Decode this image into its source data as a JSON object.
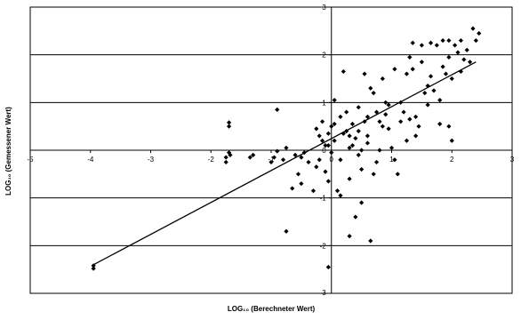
{
  "chart_data": {
    "type": "scatter",
    "title": "",
    "xlabel": "LOG₁₀ (Berechneter Wert)",
    "ylabel": "LOG₁₀ (Gemessener Wert)",
    "xlim": [
      -5,
      3
    ],
    "ylim": [
      -3,
      3
    ],
    "x_ticks": [
      -5,
      -4,
      -3,
      -2,
      -1,
      0,
      1,
      2,
      3
    ],
    "y_ticks": [
      -3,
      -2,
      -1,
      0,
      1,
      2,
      3
    ],
    "x_tick_labels": [
      "-5",
      "-4",
      "-3",
      "-2",
      "-1",
      "0",
      "1",
      "2",
      "3"
    ],
    "y_tick_labels": [
      "-3",
      "-2",
      "-1",
      "0",
      "1",
      "2",
      "3"
    ],
    "grid": "horizontal",
    "legend": "none",
    "marker": "diamond",
    "marker_color": "#000000",
    "trendline": {
      "x": [
        -3.95,
        2.4
      ],
      "y": [
        -2.4,
        1.85
      ]
    },
    "series": [
      {
        "values": [
          [
            -3.95,
            -2.42
          ],
          [
            -3.95,
            -2.48
          ],
          [
            -1.7,
            0.58
          ],
          [
            -1.7,
            0.5
          ],
          [
            -1.75,
            -0.15
          ],
          [
            -1.7,
            -0.05
          ],
          [
            -1.75,
            -0.25
          ],
          [
            -1.68,
            -0.1
          ],
          [
            -1.3,
            -0.1
          ],
          [
            -1.35,
            -0.15
          ],
          [
            -1.0,
            -0.25
          ],
          [
            -0.95,
            -0.15
          ],
          [
            -0.9,
            -0.02
          ],
          [
            -0.9,
            0.85
          ],
          [
            -0.8,
            -0.2
          ],
          [
            -0.75,
            0.05
          ],
          [
            -0.6,
            -0.1
          ],
          [
            -0.5,
            -0.15
          ],
          [
            -0.45,
            -0.05
          ],
          [
            -0.38,
            -0.25
          ],
          [
            -0.75,
            -1.7
          ],
          [
            -0.65,
            -0.8
          ],
          [
            -0.55,
            -0.5
          ],
          [
            -0.5,
            -0.7
          ],
          [
            -0.2,
            -0.2
          ],
          [
            -0.25,
            0.45
          ],
          [
            -0.15,
            0.2
          ],
          [
            -0.15,
            0.6
          ],
          [
            -0.1,
            -0.45
          ],
          [
            -0.05,
            -0.65
          ],
          [
            -0.1,
            0.1
          ],
          [
            -0.05,
            0.35
          ],
          [
            0.0,
            0.5
          ],
          [
            0.05,
            1.05
          ],
          [
            0.05,
            0.2
          ],
          [
            0.1,
            -0.85
          ],
          [
            0.15,
            -0.95
          ],
          [
            0.2,
            1.65
          ],
          [
            0.2,
            0.35
          ],
          [
            0.25,
            0.4
          ],
          [
            0.25,
            0.8
          ],
          [
            0.3,
            0.3
          ],
          [
            0.3,
            -0.6
          ],
          [
            0.35,
            0.1
          ],
          [
            0.35,
            0.55
          ],
          [
            0.4,
            0.25
          ],
          [
            0.45,
            0.4
          ],
          [
            0.45,
            -0.1
          ],
          [
            0.5,
            -0.4
          ],
          [
            0.5,
            0.0
          ],
          [
            0.5,
            -1.1
          ],
          [
            0.55,
            0.6
          ],
          [
            0.6,
            0.7
          ],
          [
            0.6,
            0.3
          ],
          [
            0.65,
            1.3
          ],
          [
            0.7,
            1.2
          ],
          [
            0.75,
            0.8
          ],
          [
            0.75,
            -0.25
          ],
          [
            0.8,
            0.6
          ],
          [
            0.85,
            0.5
          ],
          [
            0.85,
            1.5
          ],
          [
            0.9,
            1.0
          ],
          [
            0.95,
            0.45
          ],
          [
            1.0,
            0.05
          ],
          [
            1.05,
            -0.2
          ],
          [
            1.1,
            -0.5
          ],
          [
            1.15,
            0.6
          ],
          [
            1.2,
            0.8
          ],
          [
            1.25,
            1.6
          ],
          [
            1.25,
            0.2
          ],
          [
            1.3,
            1.95
          ],
          [
            1.35,
            1.7
          ],
          [
            1.4,
            0.3
          ],
          [
            1.4,
            0.7
          ],
          [
            1.45,
            0.5
          ],
          [
            1.5,
            1.85
          ],
          [
            1.55,
            1.2
          ],
          [
            1.6,
            1.35
          ],
          [
            1.6,
            0.95
          ],
          [
            1.65,
            1.55
          ],
          [
            1.65,
            2.25
          ],
          [
            1.7,
            1.25
          ],
          [
            1.75,
            2.2
          ],
          [
            1.8,
            1.05
          ],
          [
            1.8,
            0.55
          ],
          [
            1.85,
            1.75
          ],
          [
            1.85,
            2.3
          ],
          [
            1.9,
            1.6
          ],
          [
            1.95,
            0.5
          ],
          [
            2.0,
            1.5
          ],
          [
            2.0,
            0.2
          ],
          [
            2.1,
            2.05
          ],
          [
            2.15,
            1.65
          ],
          [
            2.2,
            1.9
          ],
          [
            2.25,
            2.1
          ],
          [
            2.3,
            1.85
          ],
          [
            2.35,
            2.55
          ],
          [
            2.4,
            2.3
          ],
          [
            2.45,
            2.45
          ],
          [
            2.15,
            2.3
          ],
          [
            1.95,
            2.3
          ],
          [
            1.5,
            2.2
          ],
          [
            1.35,
            2.25
          ],
          [
            0.95,
            0.95
          ],
          [
            0.8,
            0.0
          ],
          [
            0.7,
            -0.5
          ],
          [
            0.4,
            -1.4
          ],
          [
            0.3,
            -1.8
          ],
          [
            0.65,
            -1.9
          ],
          [
            -0.2,
            0.3
          ],
          [
            0.15,
            0.7
          ],
          [
            0.05,
            0.55
          ],
          [
            -0.3,
            -0.85
          ],
          [
            -0.25,
            -0.35
          ],
          [
            0.55,
            1.6
          ],
          [
            1.05,
            1.7
          ],
          [
            1.15,
            1.0
          ],
          [
            1.95,
            1.95
          ],
          [
            2.05,
            2.2
          ],
          [
            0.6,
            0.15
          ],
          [
            0.45,
            0.9
          ],
          [
            0.3,
            0.05
          ],
          [
            0.0,
            -0.05
          ],
          [
            -0.05,
            0.1
          ],
          [
            0.15,
            -0.2
          ],
          [
            1.3,
            0.65
          ],
          [
            0.9,
            0.75
          ],
          [
            -0.05,
            -2.45
          ]
        ]
      }
    ]
  }
}
